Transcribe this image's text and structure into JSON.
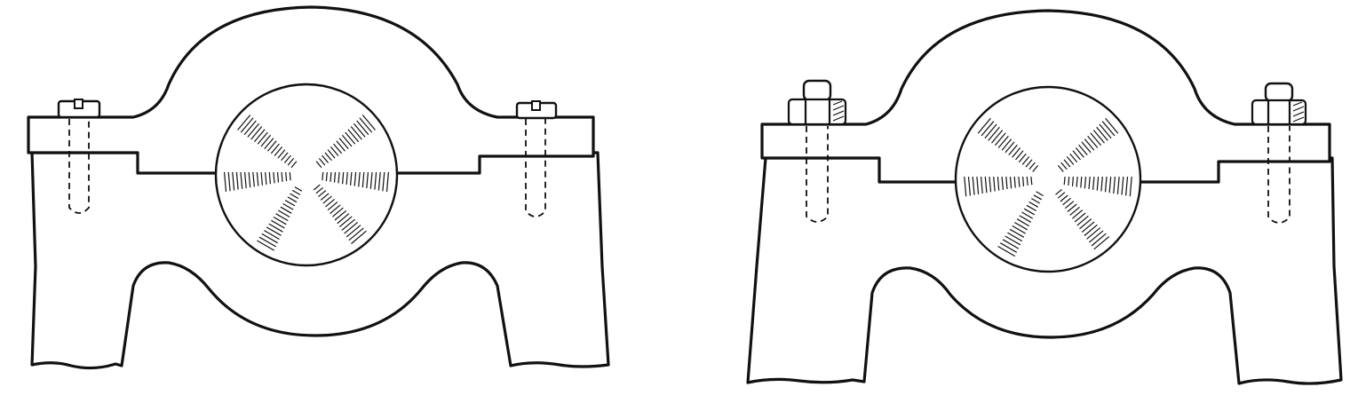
{
  "figure": {
    "views": [
      {
        "id": "left",
        "fastener": "screw"
      },
      {
        "id": "right",
        "fastener": "bolt-with-nut"
      }
    ],
    "colors": {
      "ink": "#111111",
      "paper": "#ffffff"
    },
    "hatch_rays": 6
  }
}
